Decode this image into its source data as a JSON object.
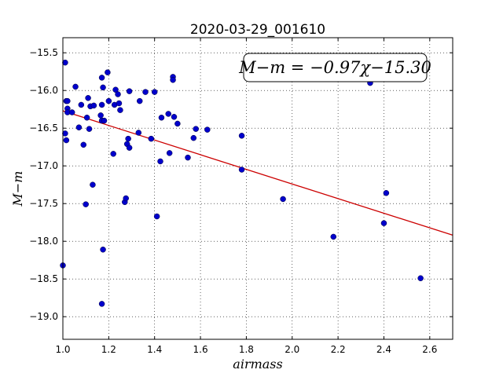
{
  "chart_data": {
    "type": "scatter",
    "title": "2020-03-29_001610",
    "xlabel": "airmass",
    "ylabel": "M−m",
    "xlim": [
      1.0,
      2.7
    ],
    "ylim": [
      -19.3,
      -15.3
    ],
    "y_inverted": false,
    "grid": true,
    "x_ticks": [
      1.0,
      1.2,
      1.4,
      1.6,
      1.8,
      2.0,
      2.2,
      2.4,
      2.6
    ],
    "x_tick_labels": [
      "1.0",
      "1.2",
      "1.4",
      "1.6",
      "1.8",
      "2.0",
      "2.2",
      "2.4",
      "2.6"
    ],
    "y_ticks": [
      -15.5,
      -16.0,
      -16.5,
      -17.0,
      -17.5,
      -18.0,
      -18.5,
      -19.0
    ],
    "y_tick_labels": [
      "−15.5",
      "−16.0",
      "−16.5",
      "−17.0",
      "−17.5",
      "−18.0",
      "−18.5",
      "−19.0"
    ],
    "annotation": "M−m = −0.97χ−15.30",
    "fit_line": {
      "slope": -0.97,
      "intercept": -15.3,
      "color": "#cc0000"
    },
    "point_color": "#0000cc",
    "points": [
      {
        "x": 1.01,
        "y": -15.63
      },
      {
        "x": 1.0,
        "y": -18.32
      },
      {
        "x": 1.01,
        "y": -16.57
      },
      {
        "x": 1.015,
        "y": -16.66
      },
      {
        "x": 1.015,
        "y": -16.14
      },
      {
        "x": 1.02,
        "y": -16.14
      },
      {
        "x": 1.02,
        "y": -16.24
      },
      {
        "x": 1.02,
        "y": -16.29
      },
      {
        "x": 1.04,
        "y": -16.29
      },
      {
        "x": 1.055,
        "y": -15.95
      },
      {
        "x": 1.07,
        "y": -16.49
      },
      {
        "x": 1.08,
        "y": -16.19
      },
      {
        "x": 1.09,
        "y": -16.72
      },
      {
        "x": 1.1,
        "y": -17.51
      },
      {
        "x": 1.105,
        "y": -16.36
      },
      {
        "x": 1.11,
        "y": -16.1
      },
      {
        "x": 1.115,
        "y": -16.51
      },
      {
        "x": 1.12,
        "y": -16.21
      },
      {
        "x": 1.13,
        "y": -17.25
      },
      {
        "x": 1.135,
        "y": -16.2
      },
      {
        "x": 1.165,
        "y": -16.33
      },
      {
        "x": 1.17,
        "y": -15.83
      },
      {
        "x": 1.17,
        "y": -16.19
      },
      {
        "x": 1.17,
        "y": -16.4
      },
      {
        "x": 1.175,
        "y": -15.96
      },
      {
        "x": 1.175,
        "y": -18.11
      },
      {
        "x": 1.17,
        "y": -18.83
      },
      {
        "x": 1.18,
        "y": -16.4
      },
      {
        "x": 1.195,
        "y": -15.76
      },
      {
        "x": 1.2,
        "y": -16.14
      },
      {
        "x": 1.22,
        "y": -16.84
      },
      {
        "x": 1.225,
        "y": -16.19
      },
      {
        "x": 1.23,
        "y": -15.99
      },
      {
        "x": 1.24,
        "y": -16.05
      },
      {
        "x": 1.245,
        "y": -16.17
      },
      {
        "x": 1.25,
        "y": -16.26
      },
      {
        "x": 1.27,
        "y": -17.48
      },
      {
        "x": 1.275,
        "y": -17.43
      },
      {
        "x": 1.28,
        "y": -16.71
      },
      {
        "x": 1.285,
        "y": -16.64
      },
      {
        "x": 1.29,
        "y": -16.76
      },
      {
        "x": 1.29,
        "y": -16.01
      },
      {
        "x": 1.33,
        "y": -16.56
      },
      {
        "x": 1.335,
        "y": -16.14
      },
      {
        "x": 1.36,
        "y": -16.02
      },
      {
        "x": 1.385,
        "y": -16.64
      },
      {
        "x": 1.4,
        "y": -16.02
      },
      {
        "x": 1.41,
        "y": -17.67
      },
      {
        "x": 1.425,
        "y": -16.94
      },
      {
        "x": 1.43,
        "y": -16.36
      },
      {
        "x": 1.46,
        "y": -16.31
      },
      {
        "x": 1.465,
        "y": -16.83
      },
      {
        "x": 1.48,
        "y": -15.82
      },
      {
        "x": 1.48,
        "y": -15.86
      },
      {
        "x": 1.485,
        "y": -16.35
      },
      {
        "x": 1.5,
        "y": -16.44
      },
      {
        "x": 1.545,
        "y": -16.89
      },
      {
        "x": 1.57,
        "y": -16.63
      },
      {
        "x": 1.58,
        "y": -16.51
      },
      {
        "x": 1.63,
        "y": -16.52
      },
      {
        "x": 1.78,
        "y": -16.6
      },
      {
        "x": 1.78,
        "y": -17.05
      },
      {
        "x": 1.96,
        "y": -17.44
      },
      {
        "x": 2.18,
        "y": -17.94
      },
      {
        "x": 2.34,
        "y": -15.9
      },
      {
        "x": 2.4,
        "y": -17.76
      },
      {
        "x": 2.41,
        "y": -17.36
      },
      {
        "x": 2.56,
        "y": -18.49
      }
    ]
  }
}
